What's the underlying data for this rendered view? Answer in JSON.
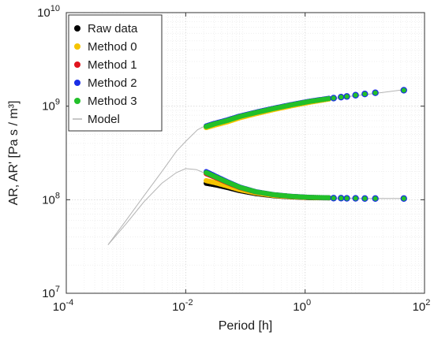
{
  "chart_data": {
    "type": "scatter",
    "xlabel": "Period [h]",
    "ylabel": "AR, AR'   [Pa s / m³]",
    "x_scale": "log",
    "y_scale": "log",
    "xlim": [
      0.0001,
      100
    ],
    "ylim": [
      10000000,
      10000000000
    ],
    "grid": true,
    "legend_position": "top-left",
    "x_ticks": [
      {
        "value": 0.0001,
        "base": "10",
        "exp": "-4"
      },
      {
        "value": 0.01,
        "base": "10",
        "exp": "-2"
      },
      {
        "value": 1,
        "base": "10",
        "exp": "0"
      },
      {
        "value": 100,
        "base": "10",
        "exp": "2"
      }
    ],
    "y_ticks": [
      {
        "value": 10000000,
        "base": "10",
        "exp": "7"
      },
      {
        "value": 100000000,
        "base": "10",
        "exp": "8"
      },
      {
        "value": 1000000000,
        "base": "10",
        "exp": "9"
      },
      {
        "value": 10000000000,
        "base": "10",
        "exp": "10"
      }
    ],
    "legend": [
      {
        "label": "Raw data",
        "color": "#000000",
        "kind": "dot"
      },
      {
        "label": "Method 0",
        "color": "#f5c400",
        "kind": "dot"
      },
      {
        "label": "Method 1",
        "color": "#e0141e",
        "kind": "dot"
      },
      {
        "label": "Method 2",
        "color": "#1a2ee6",
        "kind": "dot"
      },
      {
        "label": "Method 3",
        "color": "#22c02a",
        "kind": "dot"
      },
      {
        "label": "Model",
        "color": "#b4b4b4",
        "kind": "line"
      }
    ],
    "model_curves": [
      {
        "label": "Model",
        "x": [
          0.0005,
          0.001,
          0.002,
          0.004,
          0.007,
          0.01,
          0.0158,
          0.025,
          0.04,
          0.07,
          0.1,
          0.2,
          0.5,
          1,
          2,
          5,
          10,
          20,
          45
        ],
        "y": [
          33000000,
          60000000,
          110000000,
          200000000,
          330000000,
          420000000,
          560000000,
          650000000,
          700000000,
          770000000,
          810000000,
          880000000,
          990000000,
          1080000000,
          1160000000,
          1260000000,
          1330000000,
          1400000000,
          1500000000
        ]
      },
      {
        "label": "Model",
        "x": [
          0.0005,
          0.001,
          0.002,
          0.004,
          0.007,
          0.01,
          0.015,
          0.022,
          0.03,
          0.05,
          0.08,
          0.15,
          0.3,
          0.7,
          1.5,
          3,
          10,
          45
        ],
        "y": [
          33000000,
          55000000,
          95000000,
          150000000,
          195000000,
          215000000,
          210000000,
          190000000,
          170000000,
          145000000,
          128000000,
          117000000,
          110000000,
          107000000,
          105000000,
          104000000,
          103000000,
          103000000
        ]
      }
    ],
    "upper_series_dense": [
      {
        "name": "Raw data",
        "x": [
          0.022,
          0.03,
          0.05,
          0.08,
          0.15,
          0.3,
          0.6,
          1.2,
          2.5
        ],
        "y": [
          600000000,
          630000000,
          690000000,
          760000000,
          840000000,
          930000000,
          1020000000,
          1110000000,
          1200000000
        ]
      },
      {
        "name": "Method 0",
        "x": [
          0.022,
          0.03,
          0.05,
          0.08,
          0.15,
          0.3,
          0.6,
          1.2,
          2.5
        ],
        "y": [
          590000000,
          625000000,
          680000000,
          750000000,
          830000000,
          920000000,
          1010000000,
          1100000000,
          1190000000
        ]
      },
      {
        "name": "Method 1",
        "x": [
          0.022,
          0.03,
          0.05,
          0.08,
          0.15,
          0.3,
          0.6,
          1.2,
          2.5
        ],
        "y": [
          610000000,
          650000000,
          710000000,
          780000000,
          860000000,
          950000000,
          1040000000,
          1130000000,
          1210000000
        ]
      },
      {
        "name": "Method 2",
        "x": [
          0.022,
          0.03,
          0.05,
          0.08,
          0.15,
          0.3,
          0.6,
          1.2,
          2.5
        ],
        "y": [
          615000000,
          655000000,
          715000000,
          785000000,
          865000000,
          955000000,
          1045000000,
          1135000000,
          1215000000
        ]
      },
      {
        "name": "Method 3",
        "x": [
          0.022,
          0.03,
          0.05,
          0.08,
          0.15,
          0.3,
          0.6,
          1.2,
          2.5
        ],
        "y": [
          605000000,
          645000000,
          705000000,
          775000000,
          855000000,
          945000000,
          1035000000,
          1125000000,
          1205000000
        ]
      }
    ],
    "lower_series_dense": [
      {
        "name": "Raw data",
        "x": [
          0.022,
          0.03,
          0.05,
          0.08,
          0.15,
          0.3,
          0.6,
          1.2,
          2.5
        ],
        "y": [
          150000000,
          145000000,
          135000000,
          125000000,
          116000000,
          110000000,
          107000000,
          105000000,
          104500000
        ]
      },
      {
        "name": "Method 0",
        "x": [
          0.022,
          0.03,
          0.05,
          0.08,
          0.15,
          0.3,
          0.6,
          1.2,
          2.5
        ],
        "y": [
          160000000,
          153000000,
          140000000,
          128000000,
          118000000,
          111000000,
          107500000,
          105500000,
          104800000
        ]
      },
      {
        "name": "Method 1",
        "x": [
          0.022,
          0.03,
          0.05,
          0.08,
          0.15,
          0.3,
          0.6,
          1.2,
          2.5
        ],
        "y": [
          190000000,
          175000000,
          152000000,
          135000000,
          121000000,
          113000000,
          108500000,
          106000000,
          105000000
        ]
      },
      {
        "name": "Method 2",
        "x": [
          0.022,
          0.03,
          0.05,
          0.08,
          0.15,
          0.3,
          0.6,
          1.2,
          2.5
        ],
        "y": [
          200000000,
          182000000,
          156000000,
          137000000,
          122000000,
          113500000,
          108800000,
          106200000,
          105100000
        ]
      },
      {
        "name": "Method 3",
        "x": [
          0.022,
          0.03,
          0.05,
          0.08,
          0.15,
          0.3,
          0.6,
          1.2,
          2.5
        ],
        "y": [
          195000000,
          178000000,
          154000000,
          136000000,
          121500000,
          113200000,
          108600000,
          106100000,
          105050000
        ]
      }
    ],
    "sparse_points": {
      "x": [
        3,
        4,
        5,
        7,
        10,
        15,
        45
      ],
      "upper_y": [
        1220000000,
        1250000000,
        1270000000,
        1310000000,
        1350000000,
        1390000000,
        1480000000
      ],
      "lower_y": [
        104000000,
        104000000,
        103500000,
        103500000,
        103000000,
        103000000,
        103000000
      ]
    },
    "sparse_fill_color": "#22c02a",
    "sparse_edge_color": "#1a2ee6"
  }
}
